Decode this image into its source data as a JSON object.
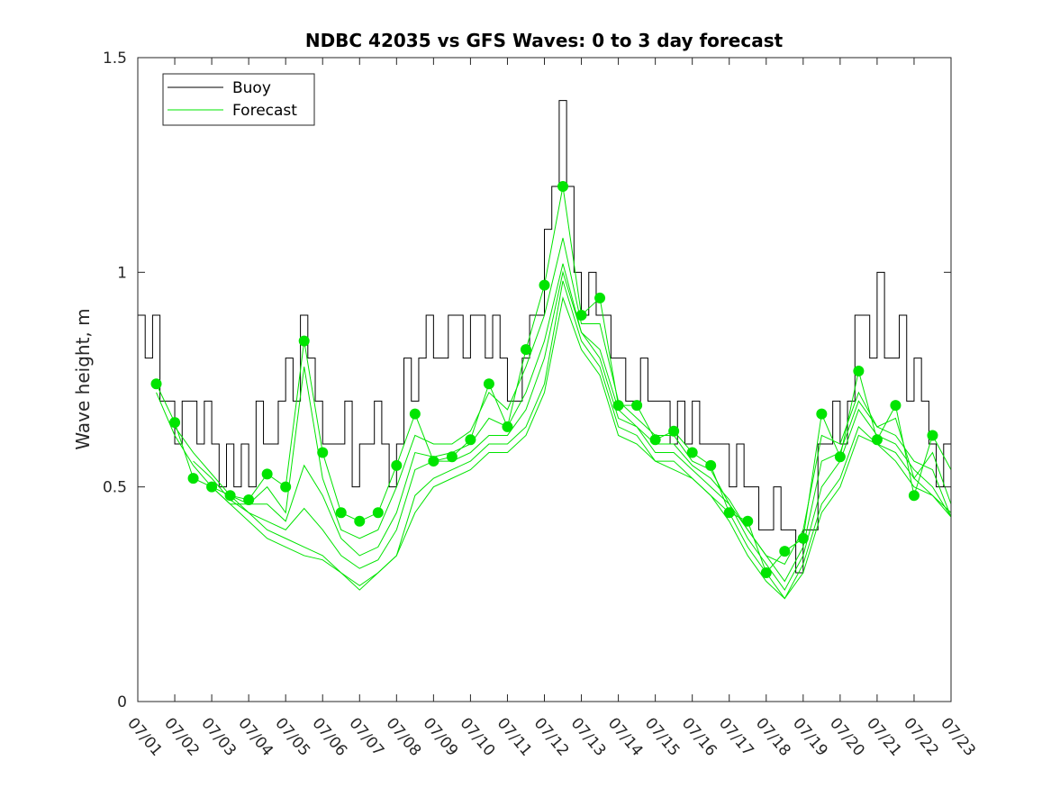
{
  "chart_data": {
    "type": "line",
    "title": "NDBC 42035 vs GFS Waves: 0 to 3 day forecast",
    "xlabel": "",
    "ylabel": "Wave height, m",
    "ylim": [
      0,
      1.5
    ],
    "xlim": [
      0,
      22
    ],
    "yticks": [
      0,
      0.5,
      1,
      1.5
    ],
    "ytick_labels": [
      "0",
      "0.5",
      "1",
      "1.5"
    ],
    "xtick_labels": [
      "07/01",
      "07/02",
      "07/03",
      "07/04",
      "07/05",
      "07/06",
      "07/07",
      "07/08",
      "07/09",
      "07/10",
      "07/11",
      "07/12",
      "07/13",
      "07/14",
      "07/15",
      "07/16",
      "07/17",
      "07/18",
      "07/19",
      "07/20",
      "07/21",
      "07/22",
      "07/23"
    ],
    "x_units": "days since 07/01",
    "grid": false,
    "legend": {
      "position": "top-left",
      "entries": [
        "Buoy",
        "Forecast"
      ]
    },
    "colors": {
      "buoy": "#000000",
      "forecast": "#00e400"
    },
    "series": [
      {
        "name": "Buoy",
        "x": [
          0,
          0.2,
          0.4,
          0.6,
          0.8,
          1.0,
          1.2,
          1.4,
          1.6,
          1.8,
          2.0,
          2.2,
          2.4,
          2.6,
          2.8,
          3.0,
          3.2,
          3.4,
          3.6,
          3.8,
          4.0,
          4.2,
          4.4,
          4.6,
          4.8,
          5.0,
          5.2,
          5.4,
          5.6,
          5.8,
          6.0,
          6.2,
          6.4,
          6.6,
          6.8,
          7.0,
          7.2,
          7.4,
          7.6,
          7.8,
          8.0,
          8.2,
          8.4,
          8.6,
          8.8,
          9.0,
          9.2,
          9.4,
          9.6,
          9.8,
          10.0,
          10.2,
          10.4,
          10.6,
          10.8,
          11.0,
          11.2,
          11.4,
          11.6,
          11.8,
          12.0,
          12.2,
          12.4,
          12.6,
          12.8,
          13.0,
          13.2,
          13.4,
          13.6,
          13.8,
          14.0,
          14.2,
          14.4,
          14.6,
          14.8,
          15.0,
          15.2,
          15.4,
          15.6,
          15.8,
          16.0,
          16.2,
          16.4,
          16.6,
          16.8,
          17.0,
          17.2,
          17.4,
          17.6,
          17.8,
          18.0,
          18.2,
          18.4,
          18.6,
          18.8,
          19.0,
          19.2,
          19.4,
          19.6,
          19.8,
          20.0,
          20.2,
          20.4,
          20.6,
          20.8,
          21.0,
          21.2,
          21.4,
          21.6,
          21.8,
          22.0
        ],
        "values": [
          0.9,
          0.8,
          0.9,
          0.7,
          0.7,
          0.6,
          0.7,
          0.7,
          0.6,
          0.7,
          0.6,
          0.5,
          0.6,
          0.5,
          0.6,
          0.5,
          0.7,
          0.6,
          0.6,
          0.7,
          0.8,
          0.7,
          0.9,
          0.8,
          0.7,
          0.6,
          0.6,
          0.6,
          0.7,
          0.5,
          0.6,
          0.6,
          0.7,
          0.6,
          0.5,
          0.6,
          0.8,
          0.7,
          0.8,
          0.9,
          0.8,
          0.8,
          0.9,
          0.9,
          0.8,
          0.9,
          0.9,
          0.8,
          0.9,
          0.8,
          0.7,
          0.7,
          0.8,
          0.9,
          0.9,
          1.1,
          1.2,
          1.4,
          1.2,
          1.0,
          0.9,
          1.0,
          0.9,
          0.9,
          0.8,
          0.8,
          0.7,
          0.7,
          0.8,
          0.7,
          0.7,
          0.7,
          0.6,
          0.7,
          0.6,
          0.7,
          0.6,
          0.6,
          0.6,
          0.6,
          0.5,
          0.6,
          0.5,
          0.5,
          0.4,
          0.4,
          0.5,
          0.4,
          0.4,
          0.3,
          0.4,
          0.4,
          0.6,
          0.6,
          0.7,
          0.6,
          0.7,
          0.9,
          0.9,
          0.8,
          1.0,
          0.8,
          0.8,
          0.9,
          0.7,
          0.8,
          0.7,
          0.6,
          0.5,
          0.6,
          0.5
        ]
      },
      {
        "name": "Forecast",
        "runs": [
          {
            "x": [
              0.5,
              1.0,
              1.5,
              2.0,
              2.5,
              3.0,
              3.5,
              4.0,
              4.5,
              5.0,
              5.5,
              6.0,
              6.5,
              7.0,
              7.5,
              8.0,
              8.5,
              9.0,
              9.5,
              10.0,
              10.5,
              11.0,
              11.5,
              12.0,
              12.5,
              13.0,
              13.5,
              14.0,
              14.5,
              15.0,
              15.5,
              16.0,
              16.5,
              17.0,
              17.5,
              18.0,
              18.5,
              19.0,
              19.5,
              20.0,
              20.5,
              21.0,
              21.5,
              22.0
            ],
            "values": [
              0.74,
              0.65,
              0.52,
              0.5,
              0.48,
              0.47,
              0.53,
              0.5,
              0.84,
              0.58,
              0.44,
              0.42,
              0.44,
              0.55,
              0.67,
              0.56,
              0.57,
              0.61,
              0.74,
              0.64,
              0.82,
              0.97,
              1.2,
              0.9,
              0.94,
              0.69,
              0.69,
              0.61,
              0.63,
              0.58,
              0.55,
              0.44,
              0.42,
              0.3,
              0.35,
              0.38,
              0.67,
              0.57,
              0.77,
              0.61,
              0.69,
              0.48,
              0.62,
              0.54
            ]
          },
          {
            "x": [
              0.5,
              1.0,
              1.5,
              2.0,
              2.5,
              3.0,
              3.5,
              4.0,
              4.5,
              5.0,
              5.5,
              6.0,
              6.5,
              7.0,
              7.5,
              8.0,
              8.5,
              9.0,
              9.5,
              10.0,
              10.5,
              11.0,
              11.5,
              12.0,
              12.5,
              13.0,
              13.5,
              14.0,
              14.5,
              15.0,
              15.5,
              16.0,
              16.5,
              17.0,
              17.5,
              18.0,
              18.5,
              19.0,
              19.5,
              20.0,
              20.5,
              21.0,
              21.5,
              22.0
            ],
            "values": [
              0.72,
              0.62,
              0.55,
              0.5,
              0.46,
              0.46,
              0.5,
              0.44,
              0.78,
              0.52,
              0.4,
              0.38,
              0.4,
              0.5,
              0.62,
              0.6,
              0.6,
              0.63,
              0.72,
              0.68,
              0.78,
              0.9,
              1.08,
              0.88,
              0.88,
              0.7,
              0.66,
              0.62,
              0.62,
              0.56,
              0.54,
              0.46,
              0.4,
              0.34,
              0.32,
              0.4,
              0.62,
              0.6,
              0.72,
              0.64,
              0.66,
              0.52,
              0.58,
              0.46
            ]
          },
          {
            "x": [
              1.0,
              1.5,
              2.0,
              2.5,
              3.0,
              3.5,
              4.0,
              4.5,
              5.0,
              5.5,
              6.0,
              6.5,
              7.0,
              7.5,
              8.0,
              8.5,
              9.0,
              9.5,
              10.0,
              10.5,
              11.0,
              11.5,
              12.0,
              12.5,
              13.0,
              13.5,
              14.0,
              14.5,
              15.0,
              15.5,
              16.0,
              16.5,
              17.0,
              17.5,
              18.0,
              18.5,
              19.0,
              19.5,
              20.0,
              20.5,
              21.0,
              21.5,
              22.0
            ],
            "values": [
              0.64,
              0.58,
              0.53,
              0.48,
              0.46,
              0.46,
              0.42,
              0.55,
              0.48,
              0.38,
              0.34,
              0.36,
              0.44,
              0.58,
              0.57,
              0.58,
              0.6,
              0.66,
              0.64,
              0.72,
              0.84,
              1.02,
              0.86,
              0.82,
              0.68,
              0.64,
              0.6,
              0.6,
              0.55,
              0.52,
              0.47,
              0.4,
              0.34,
              0.28,
              0.36,
              0.56,
              0.58,
              0.7,
              0.64,
              0.62,
              0.56,
              0.54,
              0.43
            ]
          },
          {
            "x": [
              1.5,
              2.0,
              2.5,
              3.0,
              3.5,
              4.0,
              4.5,
              5.0,
              5.5,
              6.0,
              6.5,
              7.0,
              7.5,
              8.0,
              8.5,
              9.0,
              9.5,
              10.0,
              10.5,
              11.0,
              11.5,
              12.0,
              12.5,
              13.0,
              13.5,
              14.0,
              14.5,
              15.0,
              15.5,
              16.0,
              16.5,
              17.0,
              17.5,
              18.0,
              18.5,
              19.0,
              19.5,
              20.0,
              20.5,
              21.0,
              21.5,
              22.0
            ],
            "values": [
              0.56,
              0.52,
              0.47,
              0.44,
              0.42,
              0.4,
              0.45,
              0.4,
              0.34,
              0.31,
              0.33,
              0.4,
              0.54,
              0.56,
              0.56,
              0.58,
              0.62,
              0.62,
              0.68,
              0.8,
              1.0,
              0.86,
              0.8,
              0.66,
              0.64,
              0.58,
              0.58,
              0.54,
              0.5,
              0.46,
              0.38,
              0.32,
              0.26,
              0.34,
              0.5,
              0.56,
              0.68,
              0.62,
              0.6,
              0.54,
              0.5,
              0.43
            ]
          },
          {
            "x": [
              2.0,
              2.5,
              3.0,
              3.5,
              4.0,
              4.5,
              5.0,
              5.5,
              6.0,
              6.5,
              7.0,
              7.5,
              8.0,
              8.5,
              9.0,
              9.5,
              10.0,
              10.5,
              11.0,
              11.5,
              12.0,
              12.5,
              13.0,
              13.5,
              14.0,
              14.5,
              15.0,
              15.5,
              16.0,
              16.5,
              17.0,
              17.5,
              18.0,
              18.5,
              19.0,
              19.5,
              20.0,
              20.5,
              21.0,
              21.5,
              22.0
            ],
            "values": [
              0.5,
              0.46,
              0.42,
              0.38,
              0.36,
              0.34,
              0.33,
              0.3,
              0.27,
              0.3,
              0.34,
              0.48,
              0.52,
              0.54,
              0.56,
              0.6,
              0.6,
              0.64,
              0.74,
              0.98,
              0.84,
              0.78,
              0.64,
              0.62,
              0.56,
              0.56,
              0.52,
              0.48,
              0.44,
              0.36,
              0.3,
              0.24,
              0.32,
              0.46,
              0.52,
              0.64,
              0.6,
              0.58,
              0.52,
              0.48,
              0.44
            ]
          },
          {
            "x": [
              2.5,
              3.0,
              3.5,
              4.0,
              4.5,
              5.0,
              5.5,
              6.0,
              6.5,
              7.0,
              7.5,
              8.0,
              8.5,
              9.0,
              9.5,
              10.0,
              10.5,
              11.0,
              11.5,
              12.0,
              12.5,
              13.0,
              13.5,
              14.0,
              14.5,
              15.0,
              15.5,
              16.0,
              16.5,
              17.0,
              17.5,
              18.0,
              18.5,
              19.0,
              19.5,
              20.0,
              20.5,
              21.0,
              21.5,
              22.0
            ],
            "values": [
              0.48,
              0.44,
              0.4,
              0.38,
              0.36,
              0.34,
              0.3,
              0.26,
              0.3,
              0.34,
              0.44,
              0.5,
              0.52,
              0.54,
              0.58,
              0.58,
              0.62,
              0.72,
              0.94,
              0.82,
              0.76,
              0.62,
              0.6,
              0.56,
              0.54,
              0.52,
              0.48,
              0.42,
              0.34,
              0.28,
              0.24,
              0.3,
              0.44,
              0.5,
              0.62,
              0.6,
              0.56,
              0.5,
              0.48,
              0.43
            ]
          }
        ],
        "markers": {
          "x": [
            0.5,
            1.0,
            1.5,
            2.0,
            2.5,
            3.0,
            3.5,
            4.0,
            4.5,
            5.0,
            5.5,
            6.0,
            6.5,
            7.0,
            7.5,
            8.0,
            8.5,
            9.0,
            9.5,
            10.0,
            10.5,
            11.0,
            11.5,
            12.0,
            12.5,
            13.0,
            13.5,
            14.0,
            14.5,
            15.0,
            15.5,
            16.0,
            16.5,
            17.0,
            17.5,
            18.0,
            18.5,
            19.0,
            19.5,
            20.0,
            20.5,
            21.0,
            21.5
          ],
          "values": [
            0.74,
            0.65,
            0.52,
            0.5,
            0.48,
            0.47,
            0.53,
            0.5,
            0.84,
            0.58,
            0.44,
            0.42,
            0.44,
            0.55,
            0.67,
            0.56,
            0.57,
            0.61,
            0.74,
            0.64,
            0.82,
            0.97,
            1.2,
            0.9,
            0.94,
            0.69,
            0.69,
            0.61,
            0.63,
            0.58,
            0.55,
            0.44,
            0.42,
            0.3,
            0.35,
            0.38,
            0.67,
            0.57,
            0.77,
            0.61,
            0.69,
            0.48,
            0.62
          ]
        }
      }
    ]
  }
}
